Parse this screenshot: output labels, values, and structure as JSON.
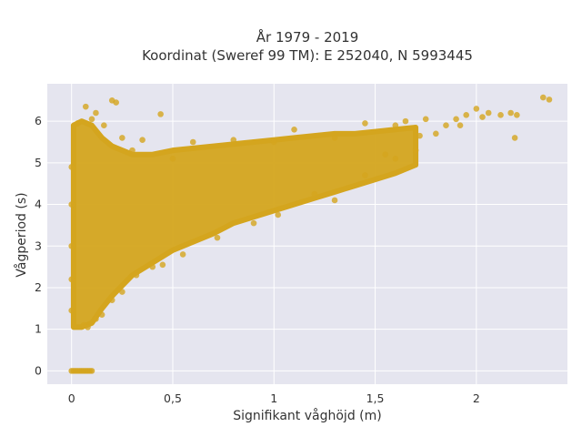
{
  "chart_data": {
    "type": "scatter",
    "title_lines": [
      "År 1979 - 2019",
      "Koordinat (Sweref 99 TM): E 252040, N 5993445"
    ],
    "xlabel": "Signifikant våghöjd (m)",
    "ylabel": "Vågperiod (s)",
    "xlim": [
      -0.12,
      2.45
    ],
    "ylim": [
      -0.32,
      6.9
    ],
    "xticks": [
      0,
      0.5,
      1,
      1.5,
      2
    ],
    "xtick_labels": [
      "0",
      "0,5",
      "1",
      "1,5",
      "2"
    ],
    "yticks": [
      0,
      1,
      2,
      3,
      4,
      5,
      6
    ],
    "ytick_labels": [
      "0",
      "1",
      "2",
      "3",
      "4",
      "5",
      "6"
    ],
    "grid": true,
    "colors": {
      "marker": "#d4a51e",
      "plot_bg": "#e5e5ef",
      "grid": "#ffffff"
    },
    "density_envelope": [
      {
        "x": 0.01,
        "ymin": 1.05,
        "ymax": 5.9
      },
      {
        "x": 0.05,
        "ymin": 1.05,
        "ymax": 6.0
      },
      {
        "x": 0.1,
        "ymin": 1.15,
        "ymax": 5.9
      },
      {
        "x": 0.15,
        "ymin": 1.5,
        "ymax": 5.6
      },
      {
        "x": 0.2,
        "ymin": 1.8,
        "ymax": 5.4
      },
      {
        "x": 0.3,
        "ymin": 2.3,
        "ymax": 5.2
      },
      {
        "x": 0.4,
        "ymin": 2.6,
        "ymax": 5.2
      },
      {
        "x": 0.5,
        "ymin": 2.9,
        "ymax": 5.3
      },
      {
        "x": 0.6,
        "ymin": 3.1,
        "ymax": 5.35
      },
      {
        "x": 0.7,
        "ymin": 3.3,
        "ymax": 5.4
      },
      {
        "x": 0.8,
        "ymin": 3.55,
        "ymax": 5.45
      },
      {
        "x": 0.9,
        "ymin": 3.7,
        "ymax": 5.5
      },
      {
        "x": 1.0,
        "ymin": 3.85,
        "ymax": 5.55
      },
      {
        "x": 1.1,
        "ymin": 4.0,
        "ymax": 5.6
      },
      {
        "x": 1.2,
        "ymin": 4.15,
        "ymax": 5.65
      },
      {
        "x": 1.3,
        "ymin": 4.3,
        "ymax": 5.7
      },
      {
        "x": 1.4,
        "ymin": 4.45,
        "ymax": 5.7
      },
      {
        "x": 1.5,
        "ymin": 4.6,
        "ymax": 5.75
      },
      {
        "x": 1.6,
        "ymin": 4.75,
        "ymax": 5.8
      },
      {
        "x": 1.7,
        "ymin": 4.95,
        "ymax": 5.85
      }
    ],
    "zero_points": [
      [
        0.0,
        0
      ],
      [
        0.01,
        0
      ],
      [
        0.02,
        0
      ],
      [
        0.03,
        0
      ],
      [
        0.04,
        0
      ],
      [
        0.05,
        0
      ],
      [
        0.06,
        0
      ],
      [
        0.07,
        0
      ],
      [
        0.08,
        0
      ],
      [
        0.09,
        0
      ],
      [
        0.1,
        0
      ]
    ],
    "sparse_points": [
      [
        0.07,
        6.35
      ],
      [
        0.12,
        6.2
      ],
      [
        0.2,
        6.5
      ],
      [
        0.22,
        6.45
      ],
      [
        0.44,
        6.17
      ],
      [
        0.03,
        5.95
      ],
      [
        0.1,
        6.05
      ],
      [
        0.16,
        5.9
      ],
      [
        0.25,
        5.6
      ],
      [
        0.35,
        5.55
      ],
      [
        0.6,
        5.5
      ],
      [
        0.8,
        5.55
      ],
      [
        1.1,
        5.8
      ],
      [
        1.3,
        5.6
      ],
      [
        1.45,
        5.95
      ],
      [
        1.75,
        6.05
      ],
      [
        1.8,
        5.7
      ],
      [
        1.85,
        5.9
      ],
      [
        1.9,
        6.05
      ],
      [
        1.95,
        6.15
      ],
      [
        2.0,
        6.3
      ],
      [
        2.03,
        6.1
      ],
      [
        2.06,
        6.2
      ],
      [
        2.12,
        6.15
      ],
      [
        2.17,
        6.2
      ],
      [
        2.2,
        6.15
      ],
      [
        2.19,
        5.6
      ],
      [
        2.33,
        6.57
      ],
      [
        2.36,
        6.52
      ],
      [
        1.92,
        5.9
      ],
      [
        1.7,
        5.3
      ],
      [
        1.72,
        5.65
      ],
      [
        1.6,
        5.1
      ],
      [
        1.55,
        5.2
      ],
      [
        1.45,
        4.7
      ],
      [
        1.3,
        4.1
      ],
      [
        1.2,
        4.25
      ],
      [
        1.02,
        3.75
      ],
      [
        0.9,
        3.55
      ],
      [
        0.72,
        3.2
      ],
      [
        0.55,
        2.8
      ],
      [
        0.45,
        2.55
      ],
      [
        0.4,
        2.5
      ],
      [
        0.32,
        2.3
      ],
      [
        0.25,
        1.9
      ],
      [
        0.2,
        1.7
      ],
      [
        0.15,
        1.35
      ],
      [
        0.12,
        1.25
      ],
      [
        0.08,
        1.05
      ],
      [
        0.06,
        1.1
      ],
      [
        0.0,
        1.45
      ],
      [
        0.0,
        2.2
      ],
      [
        0.0,
        3.0
      ],
      [
        0.0,
        4.0
      ],
      [
        0.0,
        4.9
      ],
      [
        0.5,
        5.1
      ],
      [
        0.3,
        5.3
      ],
      [
        1.0,
        5.5
      ],
      [
        1.6,
        5.9
      ],
      [
        1.65,
        6.0
      ]
    ]
  }
}
